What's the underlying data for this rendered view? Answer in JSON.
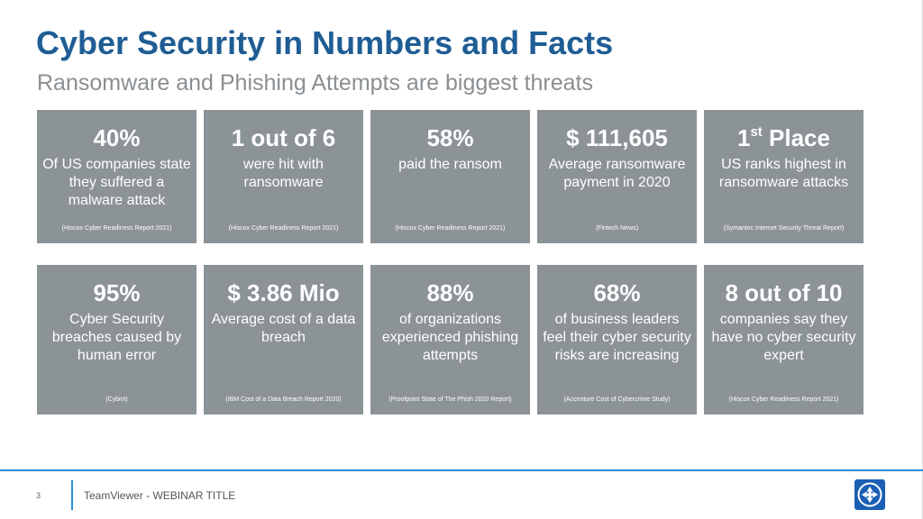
{
  "slide": {
    "title": "Cyber Security in Numbers and Facts",
    "subtitle": "Ransomware and Phishing Attempts are biggest threats"
  },
  "cards": [
    {
      "figure": "40%",
      "desc": "Of US companies state they suffered a malware attack",
      "source": "(Hiscox Cyber Readiness Report 2021)"
    },
    {
      "figure": "1 out of 6",
      "desc": "were hit with ransomware",
      "source": "(Hiscox Cyber Readiness Report 2021)"
    },
    {
      "figure": "58%",
      "desc": "paid the ransom",
      "source": "(Hiscox Cyber Readiness Report 2021)"
    },
    {
      "figure": "$ 111,605",
      "desc": "Average ransomware payment in 2020",
      "source": "(Fintech News)"
    },
    {
      "figure_main": "1",
      "figure_sup": "st",
      "figure_rest": " Place",
      "desc": "US ranks highest in ransomware attacks",
      "source": "(Symantec Internet Security Threat Report)"
    },
    {
      "figure": "95%",
      "desc": "Cyber Security breaches caused by human error",
      "source": "(Cybint)"
    },
    {
      "figure": "$ 3.86 Mio",
      "desc": "Average cost of a data breach",
      "source": "(IBM Cost of a Data Breach Report 2020)"
    },
    {
      "figure": "88%",
      "desc": "of organizations experienced phishing attempts",
      "source": "(Proofpoint State of The Phish 2020 Report)"
    },
    {
      "figure": "68%",
      "desc": "of business leaders feel their cyber security risks are increasing",
      "source": "(Accenture Cost of Cybercrime Study)"
    },
    {
      "figure": "8 out of 10",
      "desc": "companies say they have no cyber security expert",
      "source": "(Hiscox Cyber Readiness Report 2021)"
    }
  ],
  "footer": {
    "page_number": "3",
    "text": "TeamViewer - WEBINAR TITLE",
    "logo_icon": "teamviewer-logo-icon",
    "accent_color": "#2e8fd6"
  },
  "colors": {
    "title": "#1f5d94",
    "subtitle": "#8a8f93",
    "card_background": "#8c9397",
    "logo_background": "#1a5fb4"
  }
}
